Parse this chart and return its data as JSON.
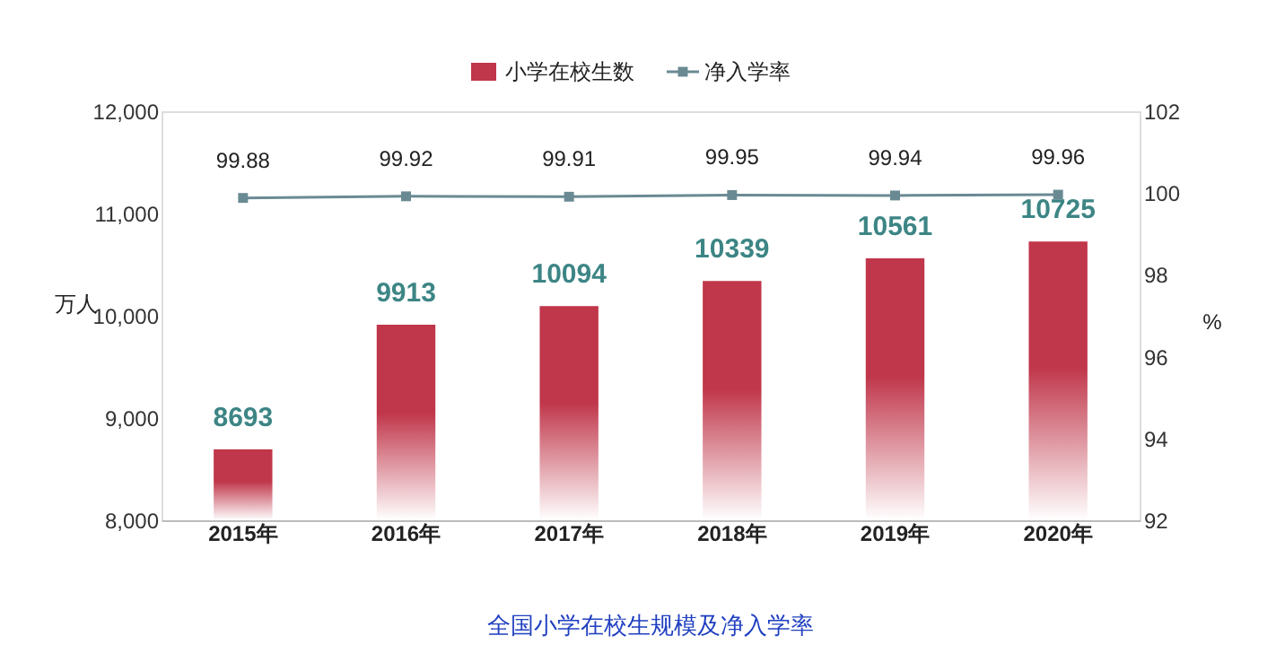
{
  "chart_data": {
    "type": "bar",
    "title": "全国小学在校生规模及净入学率",
    "categories": [
      "2015年",
      "2016年",
      "2017年",
      "2018年",
      "2019年",
      "2020年"
    ],
    "series": [
      {
        "name": "小学在校生数",
        "color": "#c0364a",
        "values": [
          8693,
          9913,
          10094,
          10339,
          10561,
          10725
        ]
      },
      {
        "name": "净入学率",
        "type": "line",
        "axis": "y2",
        "color": "#6a8a93",
        "marker": "square",
        "values": [
          99.88,
          99.92,
          99.91,
          99.95,
          99.94,
          99.96
        ]
      }
    ],
    "ylabel": "万人",
    "y2label": "%",
    "ylim": [
      8000,
      12000
    ],
    "yticks": [
      {
        "value": 8000,
        "label": "8,000"
      },
      {
        "value": 9000,
        "label": "9,000"
      },
      {
        "value": 10000,
        "label": "10,000"
      },
      {
        "value": 11000,
        "label": "11,000"
      },
      {
        "value": 12000,
        "label": "12,000"
      }
    ],
    "y2lim": [
      92,
      102
    ],
    "y2ticks": [
      92,
      94,
      96,
      98,
      100,
      102
    ],
    "data_labels": true,
    "grid": false,
    "legend": "top"
  }
}
